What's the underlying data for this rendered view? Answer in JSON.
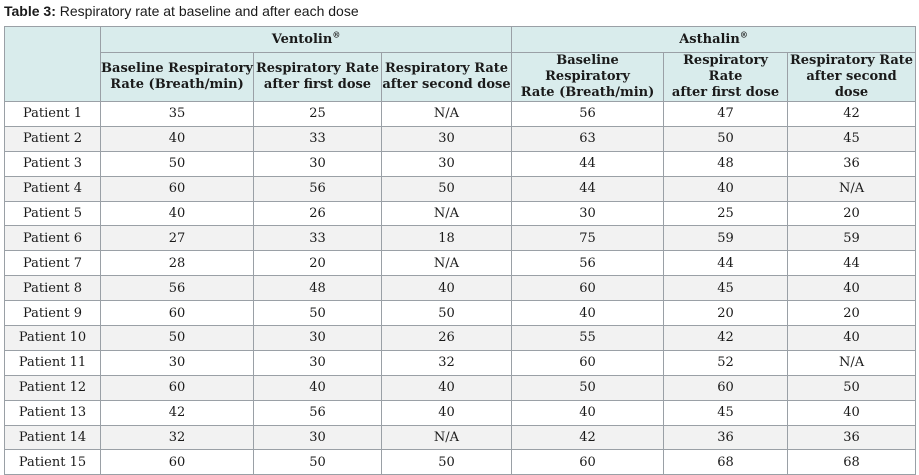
{
  "caption": {
    "label": "Table 3:",
    "text": " Respiratory rate at baseline and after each dose"
  },
  "groups": [
    {
      "name": "Ventolin",
      "mark": "®"
    },
    {
      "name": "Asthalin",
      "mark": "®"
    }
  ],
  "subheaders": [
    [
      "Baseline Respiratory",
      "Rate  (Breath/min)"
    ],
    [
      "Respiratory Rate",
      "after first dose"
    ],
    [
      "Respiratory Rate",
      "after second dose"
    ],
    [
      "Baseline Respiratory",
      "Rate (Breath/min)"
    ],
    [
      "Respiratory Rate",
      "after first dose"
    ],
    [
      "Respiratory Rate",
      "after second dose"
    ]
  ],
  "rows": [
    [
      "Patient 1",
      "35",
      "25",
      "N/A",
      "56",
      "47",
      "42"
    ],
    [
      "Patient 2",
      "40",
      "33",
      "30",
      "63",
      "50",
      "45"
    ],
    [
      "Patient 3",
      "50",
      "30",
      "30",
      "44",
      "48",
      "36"
    ],
    [
      "Patient 4",
      "60",
      "56",
      "50",
      "44",
      "40",
      "N/A"
    ],
    [
      "Patient 5",
      "40",
      "26",
      "N/A",
      "30",
      "25",
      "20"
    ],
    [
      "Patient 6",
      "27",
      "33",
      "18",
      "75",
      "59",
      "59"
    ],
    [
      "Patient 7",
      "28",
      "20",
      "N/A",
      "56",
      "44",
      "44"
    ],
    [
      "Patient 8",
      "56",
      "48",
      "40",
      "60",
      "45",
      "40"
    ],
    [
      "Patient 9",
      "60",
      "50",
      "50",
      "40",
      "20",
      "20"
    ],
    [
      "Patient 10",
      "50",
      "30",
      "26",
      "55",
      "42",
      "40"
    ],
    [
      "Patient 11",
      "30",
      "30",
      "32",
      "60",
      "52",
      "N/A"
    ],
    [
      "Patient 12",
      "60",
      "40",
      "40",
      "50",
      "60",
      "50"
    ],
    [
      "Patient 13",
      "42",
      "56",
      "40",
      "40",
      "45",
      "40"
    ],
    [
      "Patient 14",
      "32",
      "30",
      "N/A",
      "42",
      "36",
      "36"
    ],
    [
      "Patient 15",
      "60",
      "50",
      "50",
      "60",
      "68",
      "68"
    ]
  ]
}
